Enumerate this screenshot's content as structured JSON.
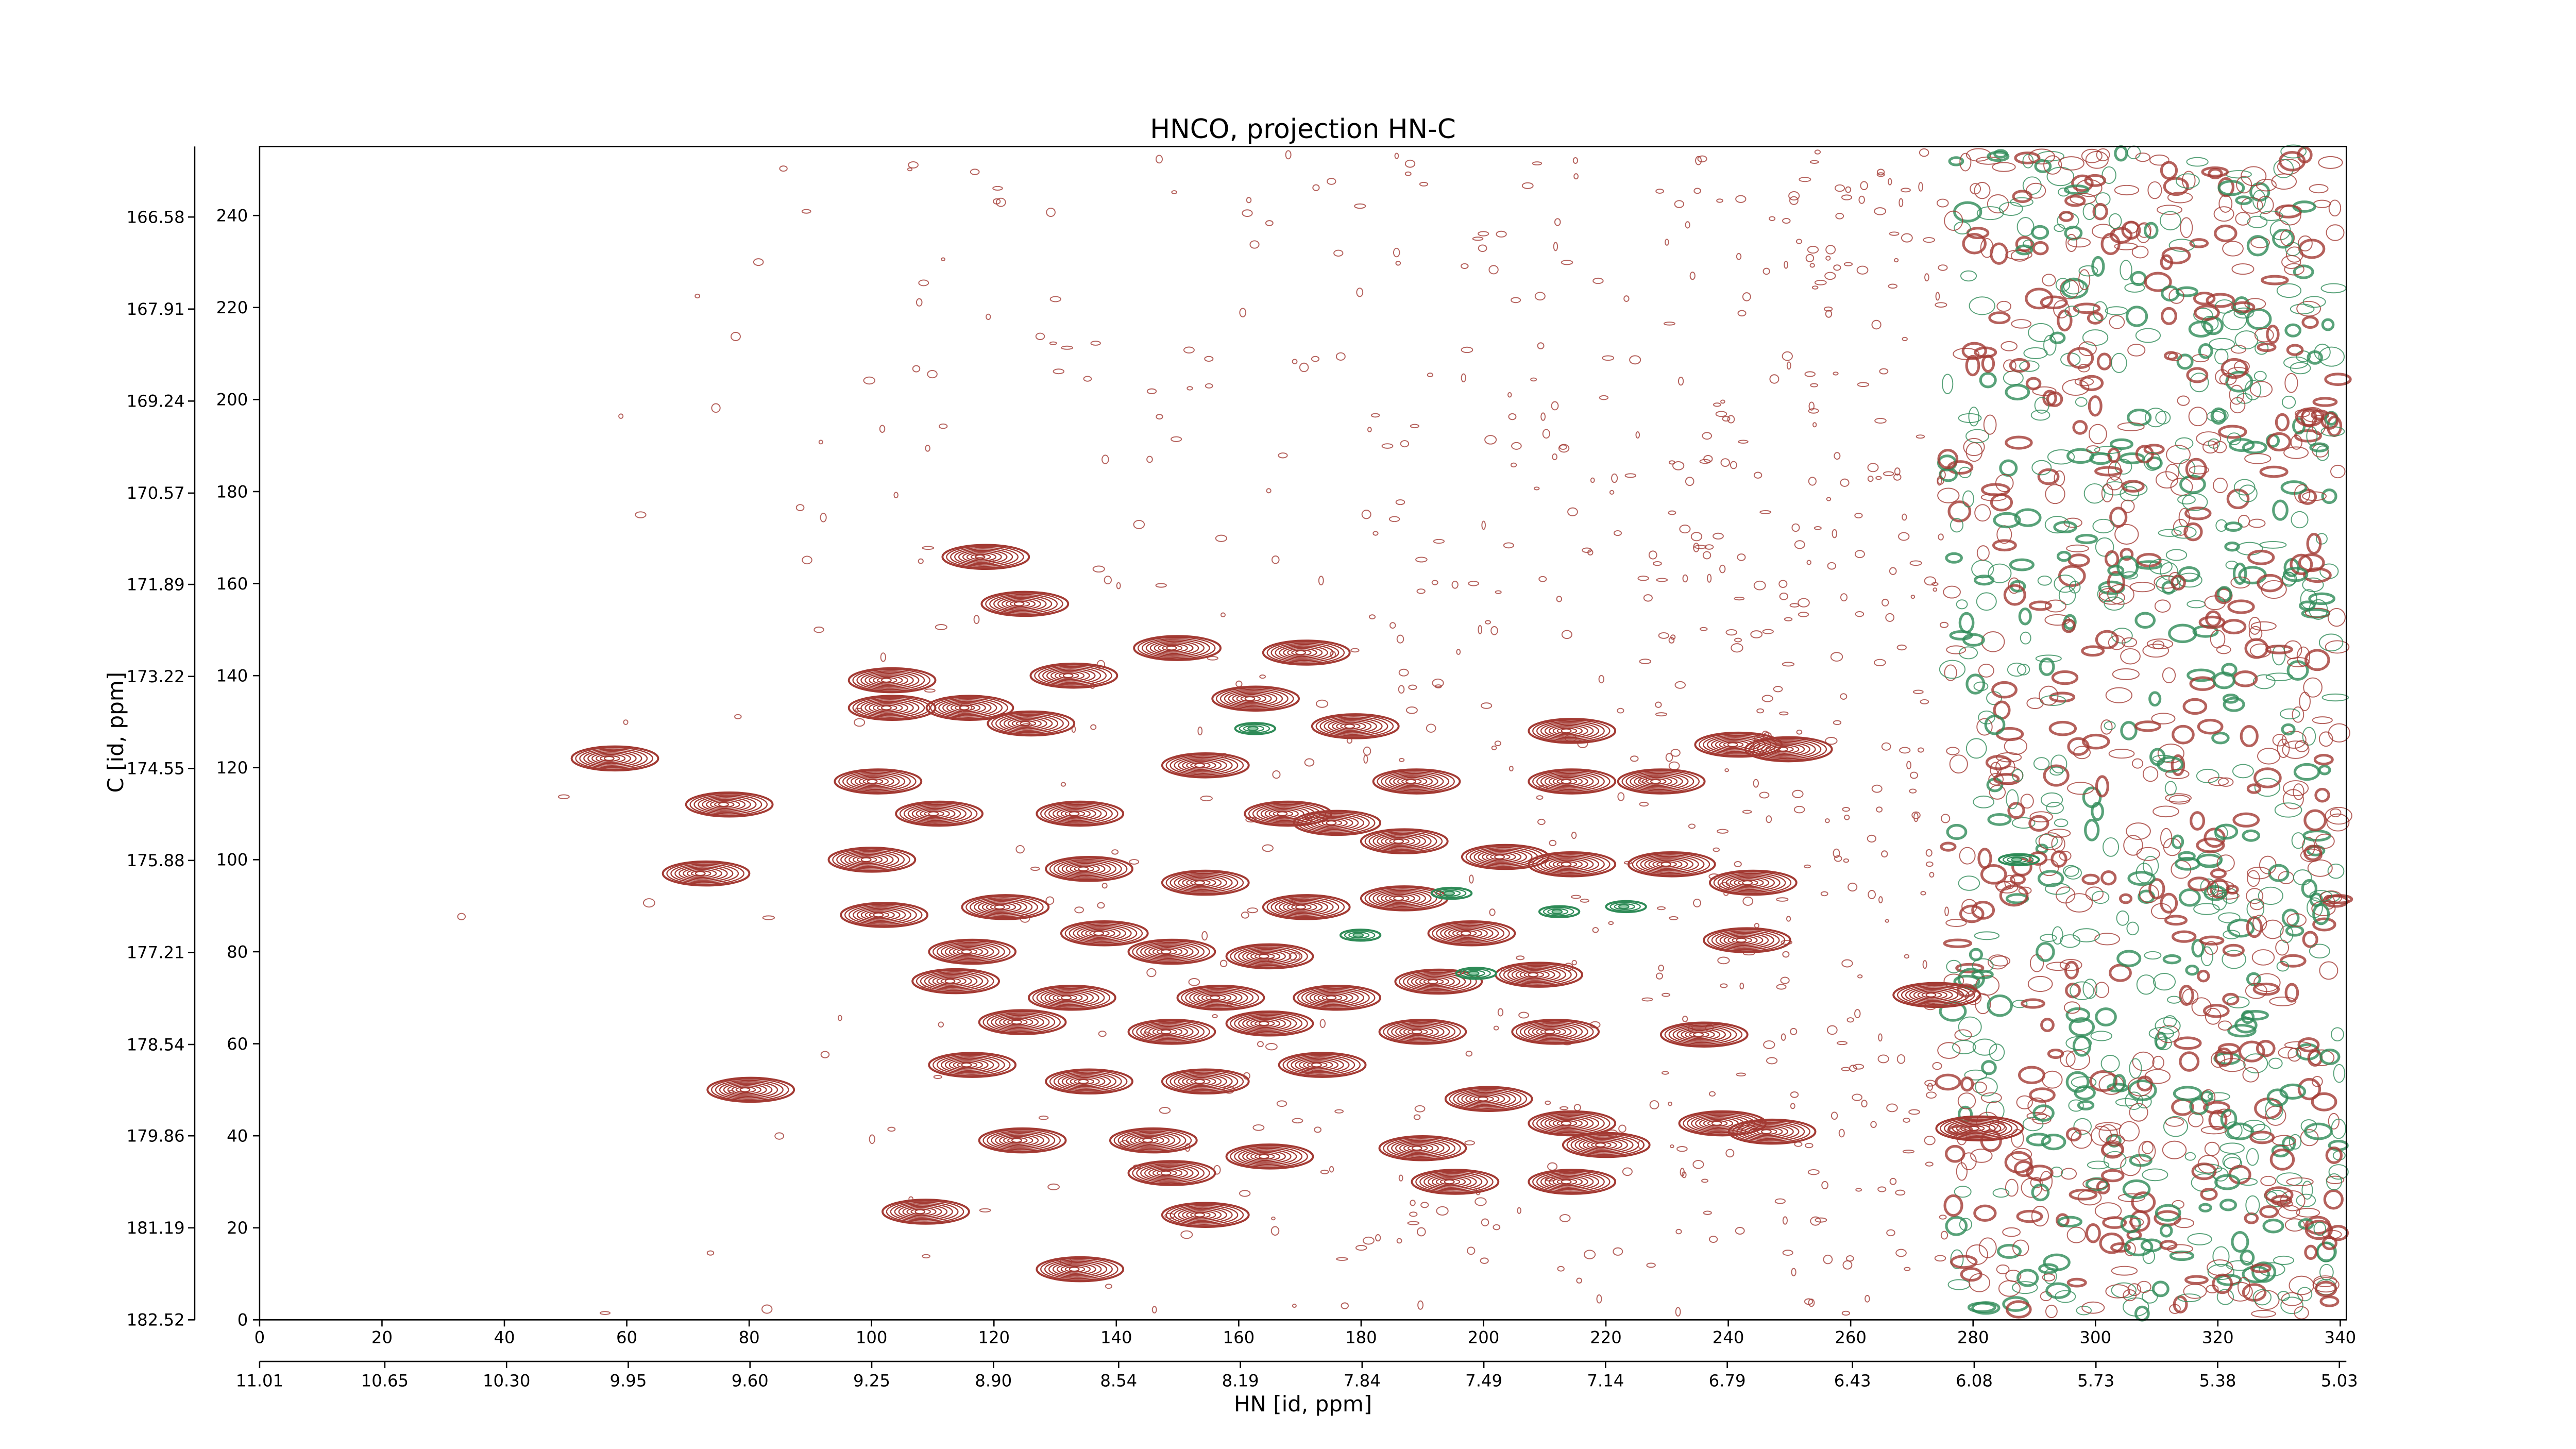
{
  "chart_data": {
    "type": "contour",
    "title": "HNCO, projection HN-C",
    "xlabel": "HN [id, ppm]",
    "ylabel": "C [id, ppm]",
    "xlim": [
      0,
      341
    ],
    "xticks": [
      0,
      20,
      40,
      60,
      80,
      100,
      120,
      140,
      160,
      180,
      200,
      220,
      240,
      260,
      280,
      300,
      320,
      340
    ],
    "ylim": [
      0,
      255
    ],
    "yticks": [
      0,
      20,
      40,
      60,
      80,
      100,
      120,
      140,
      160,
      180,
      200,
      220,
      240
    ],
    "x2lim": [
      11.01,
      5.01
    ],
    "x2ticks": [
      11.01,
      10.65,
      {
        "value": 10.3,
        "label": "10.30"
      },
      9.95,
      {
        "value": 9.6,
        "label": "9.60"
      },
      9.25,
      {
        "value": 8.9,
        "label": "8.90"
      },
      8.54,
      8.19,
      7.84,
      7.49,
      7.14,
      6.79,
      6.43,
      6.08,
      5.73,
      5.38,
      5.03
    ],
    "y2lim": [
      182.52,
      165.56
    ],
    "y2ticks": [
      182.52,
      181.19,
      179.86,
      178.54,
      177.21,
      175.88,
      174.55,
      173.22,
      171.89,
      170.57,
      169.24,
      167.91,
      166.58
    ],
    "series": [
      {
        "color": "#a33a33",
        "x": [
          117.6,
          124,
          57,
          75.7,
          71.9,
          101,
          79.2,
          107.8,
          133,
          102.3,
          102.3,
          115,
          125,
          132,
          148.9,
          170,
          161.7,
          178,
          213.4,
          213.4,
          228,
          240.6,
          248.8,
          100,
          110,
          133,
          153.5,
          167,
          175,
          188,
          99,
          134.5,
          153.5,
          186,
          202.5,
          213.4,
          229.7,
          243,
          120.8,
          137,
          170,
          186,
          197,
          115.4,
          148,
          164,
          242,
          112.7,
          131.7,
          156,
          175,
          191.6,
          208,
          273,
          123.6,
          148,
          164,
          189,
          210.7,
          235,
          115.4,
          134.5,
          153.5,
          172.6,
          199.8,
          123.6,
          145,
          164,
          189,
          213.4,
          219,
          238,
          246.1,
          148,
          194.3,
          213.4,
          153.5,
          280
        ],
        "y": [
          165.8,
          155.6,
          122,
          112,
          97,
          88,
          50,
          23.5,
          11,
          139,
          133,
          133,
          129.6,
          140,
          146,
          145,
          135,
          129,
          128,
          117,
          117,
          125,
          124,
          117,
          110,
          110,
          120.5,
          110,
          108,
          117,
          100,
          98,
          95,
          104,
          100.6,
          99,
          99,
          95,
          89.7,
          84,
          89.7,
          91.6,
          84,
          80,
          80,
          79,
          82.5,
          73.6,
          70,
          70,
          70,
          73.5,
          75,
          70.6,
          64.7,
          62.6,
          64.4,
          62.6,
          62.6,
          62,
          55.4,
          51.8,
          51.8,
          55.4,
          48,
          39,
          39,
          35.5,
          37.3,
          42.7,
          38,
          42.7,
          40.9,
          31.9,
          30,
          30,
          22.8,
          41.6
        ]
      },
      {
        "color": "#2e8b57",
        "x": [
          179.4,
          194.3,
          211.9,
          222.8,
          198.3,
          287,
          162.2
        ],
        "y": [
          83.6,
          92.7,
          88.7,
          89.8,
          75.3,
          100,
          128.5
        ]
      }
    ]
  }
}
